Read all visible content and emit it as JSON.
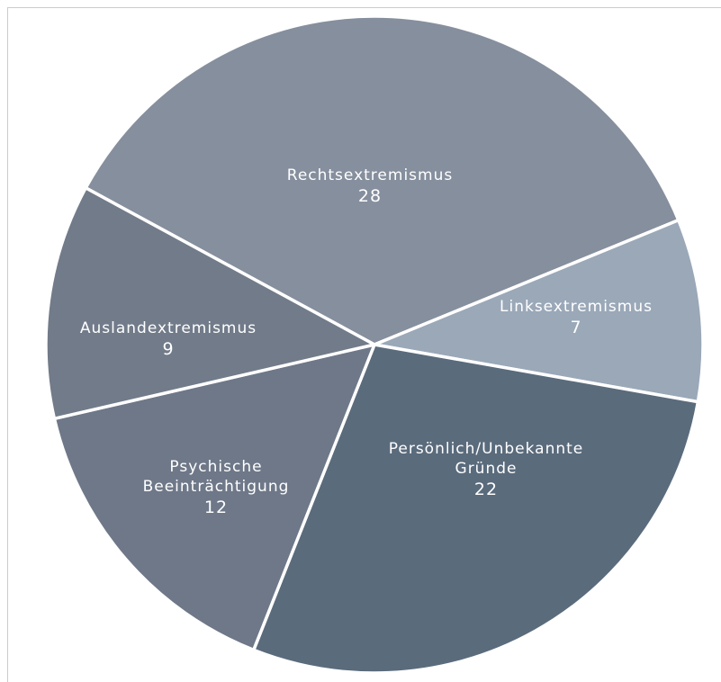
{
  "chart_data": {
    "type": "pie",
    "title": "",
    "slices": [
      {
        "name": "Rechtsextremismus",
        "lines": [
          "Rechtsextremismus"
        ],
        "value": 28,
        "label": "28",
        "color": "#868f9d"
      },
      {
        "name": "Linksextremismus",
        "lines": [
          "Linksextremismus"
        ],
        "value": 7,
        "label": "7",
        "color": "#9aa8b8"
      },
      {
        "name": "Persönlich/Unbekannte Gründe",
        "lines": [
          "Persönlich/Unbekannte",
          "Gründe"
        ],
        "value": 22,
        "label": "22",
        "color": "#5a6b7c"
      },
      {
        "name": "Psychische Beeinträchtigung",
        "lines": [
          "Psychische",
          "Beeinträchtigung"
        ],
        "value": 12,
        "label": "12",
        "color": "#6e7888"
      },
      {
        "name": "Auslandextremismus",
        "lines": [
          "Auslandextremismus"
        ],
        "value": 9,
        "label": "9",
        "color": "#727b89"
      }
    ],
    "legend": "none"
  }
}
